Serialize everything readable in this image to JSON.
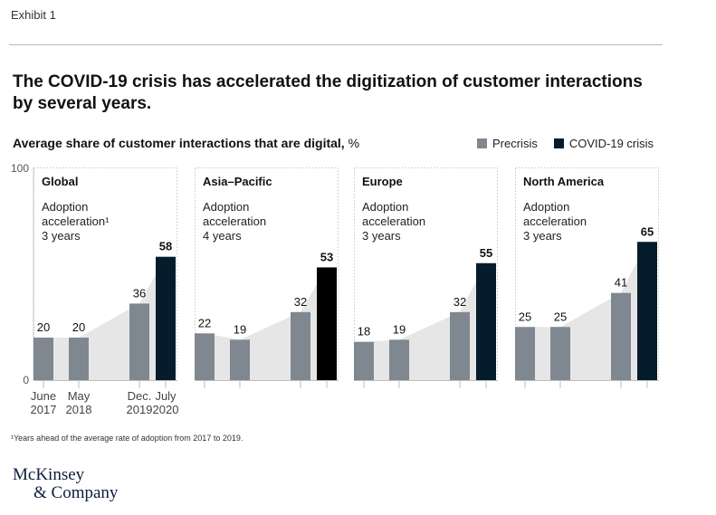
{
  "exhibit_label": "Exhibit 1",
  "title": "The COVID-19 crisis has accelerated the digitization of customer interactions by several years.",
  "subtitle_bold": "Average share of customer interactions that are digital,",
  "subtitle_unit": "%",
  "legend": [
    {
      "label": "Precrisis",
      "color": "#7f8890"
    },
    {
      "label": "COVID-19 crisis",
      "color": "#051c2c"
    }
  ],
  "footnote": "¹Years ahead of the average rate of adoption from 2017 to 2019.",
  "logo": {
    "line1": "McKinsey",
    "line2": "& Company"
  },
  "chart_data": {
    "type": "bar",
    "ylim": [
      0,
      100
    ],
    "y_tick_labels": [
      "100",
      "0"
    ],
    "categories": [
      [
        "June",
        "2017"
      ],
      [
        "May",
        "2018"
      ],
      [
        "Dec.",
        "2019"
      ],
      [
        "July",
        "2020"
      ]
    ],
    "series_legend": [
      "Precrisis",
      "COVID-19 crisis"
    ],
    "colors": {
      "precrisis": "#7f8890",
      "covid": "#051c2c",
      "covid_alt": "#000000",
      "area": "#e6e6e6"
    },
    "panels": [
      {
        "region": "Global",
        "note": [
          "Adoption",
          "acceleration¹",
          "3 years"
        ],
        "values": [
          20,
          20,
          36,
          58
        ]
      },
      {
        "region": "Asia–Pacific",
        "note": [
          "Adoption",
          "acceleration",
          "4 years"
        ],
        "values": [
          22,
          19,
          32,
          53
        ]
      },
      {
        "region": "Europe",
        "note": [
          "Adoption",
          "acceleration",
          "3 years"
        ],
        "values": [
          18,
          19,
          32,
          55
        ]
      },
      {
        "region": "North America",
        "note": [
          "Adoption",
          "acceleration",
          "3 years"
        ],
        "values": [
          25,
          25,
          41,
          65
        ]
      }
    ]
  }
}
